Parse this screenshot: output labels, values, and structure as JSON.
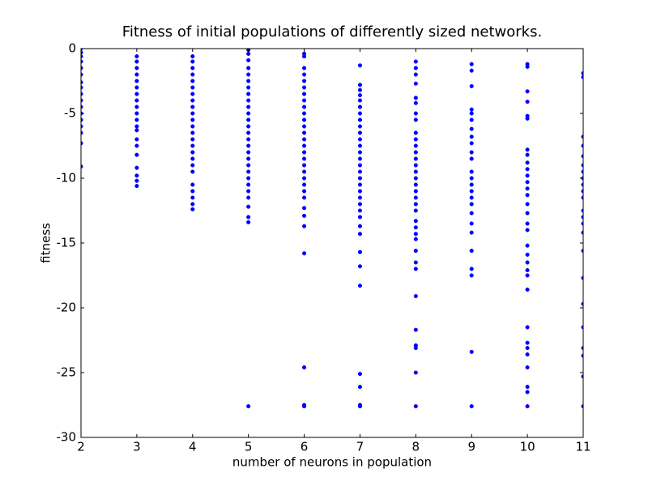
{
  "chart_data": {
    "type": "scatter",
    "title": "Fitness of initial populations of differently sized networks.",
    "x_label": "number of neurons in population",
    "y_label": "fitness",
    "color": "#0000ff",
    "xlim": [
      2,
      11
    ],
    "ylim": [
      -30,
      0
    ],
    "xticks": [
      2,
      3,
      4,
      5,
      6,
      7,
      8,
      9,
      10,
      11
    ],
    "yticks": [
      0,
      -5,
      -10,
      -15,
      -20,
      -25,
      -30
    ],
    "grid": false,
    "x": [
      2,
      2,
      2,
      2,
      2,
      2,
      2,
      2,
      2,
      2,
      2,
      2,
      2,
      2,
      2,
      2,
      2,
      3,
      3,
      3,
      3,
      3,
      3,
      3,
      3,
      3,
      3,
      3,
      3,
      3,
      3,
      3,
      3,
      3,
      3,
      3,
      3,
      4,
      4,
      4,
      4,
      4,
      4,
      4,
      4,
      4,
      4,
      4,
      4,
      4,
      4,
      4,
      4,
      4,
      4,
      4,
      4,
      4,
      4,
      4,
      4,
      5,
      5,
      5,
      5,
      5,
      5,
      5,
      5,
      5,
      5,
      5,
      5,
      5,
      5,
      5,
      5,
      5,
      5,
      5,
      5,
      5,
      5,
      5,
      5,
      5,
      5,
      5,
      5,
      6,
      6,
      6,
      6,
      6,
      6,
      6,
      6,
      6,
      6,
      6,
      6,
      6,
      6,
      6,
      6,
      6,
      6,
      6,
      6,
      6,
      6,
      6,
      6,
      6,
      6,
      6,
      6,
      6,
      6,
      7,
      7,
      7,
      7,
      7,
      7,
      7,
      7,
      7,
      7,
      7,
      7,
      7,
      7,
      7,
      7,
      7,
      7,
      7,
      7,
      7,
      7,
      7,
      7,
      7,
      7,
      7,
      7,
      7,
      7,
      7,
      7,
      8,
      8,
      8,
      8,
      8,
      8,
      8,
      8,
      8,
      8,
      8,
      8,
      8,
      8,
      8,
      8,
      8,
      8,
      8,
      8,
      8,
      8,
      8,
      8,
      8,
      8,
      8,
      8,
      8,
      8,
      8,
      8,
      8,
      8,
      9,
      9,
      9,
      9,
      9,
      9,
      9,
      9,
      9,
      9,
      9,
      9,
      9,
      9,
      9,
      9,
      9,
      9,
      9,
      9,
      9,
      9,
      9,
      9,
      9,
      10,
      10,
      10,
      10,
      10,
      10,
      10,
      10,
      10,
      10,
      10,
      10,
      10,
      10,
      10,
      10,
      10,
      10,
      10,
      10,
      10,
      10,
      10,
      10,
      10,
      10,
      10,
      10,
      10,
      10,
      10,
      10,
      11,
      11,
      11,
      11,
      11,
      11,
      11,
      11,
      11,
      11,
      11,
      11,
      11,
      11,
      11,
      11,
      11,
      11,
      11,
      11,
      11,
      11,
      11
    ],
    "values": [
      0,
      -0.3,
      -0.6,
      -1,
      -1.5,
      -2,
      -2.6,
      -3,
      -3.5,
      -4,
      -4.5,
      -5,
      -5.5,
      -6,
      -6.5,
      -7.3,
      -9.1,
      -0.6,
      -1,
      -1.5,
      -2,
      -2.5,
      -3,
      -3.5,
      -4,
      -4.5,
      -5,
      -5.5,
      -6,
      -6.3,
      -7,
      -7.5,
      -8.2,
      -9.2,
      -9.8,
      -10.2,
      -10.6,
      -0.6,
      -1,
      -1.5,
      -2,
      -2.5,
      -3,
      -3.5,
      -4,
      -4.5,
      -5,
      -5.5,
      -6,
      -6.5,
      -7,
      -7.5,
      -8,
      -8.5,
      -9,
      -9.5,
      -10.5,
      -11,
      -11.5,
      -12,
      -12.4,
      -0.1,
      -0.4,
      -0.9,
      -1.5,
      -2,
      -2.5,
      -3,
      -3.5,
      -4,
      -4.5,
      -5,
      -5.5,
      -6,
      -6.5,
      -7,
      -7.5,
      -8,
      -8.5,
      -9,
      -9.5,
      -10,
      -10.5,
      -11,
      -11.5,
      -12.2,
      -13,
      -13.4,
      -27.6,
      -0.4,
      -0.6,
      -1.5,
      -2,
      -2.5,
      -3,
      -3.5,
      -4,
      -4.5,
      -5,
      -5.5,
      -6,
      -6.5,
      -7,
      -7.5,
      -8,
      -8.5,
      -9,
      -9.5,
      -10,
      -10.5,
      -11,
      -11.5,
      -12.3,
      -12.9,
      -13.7,
      -15.8,
      -24.6,
      -27.5,
      -27.6,
      -1.3,
      -2.8,
      -3.2,
      -3.6,
      -4,
      -4.5,
      -5,
      -5.5,
      -6,
      -6.5,
      -7,
      -7.5,
      -8,
      -8.5,
      -9,
      -9.5,
      -10,
      -10.5,
      -11,
      -11.5,
      -12,
      -12.5,
      -13,
      -13.7,
      -14.3,
      -15.7,
      -16.8,
      -18.3,
      -25.1,
      -26.1,
      -27.5,
      -27.6,
      -1,
      -1.5,
      -2,
      -2.7,
      -3.8,
      -4.2,
      -5,
      -5.5,
      -6.5,
      -7,
      -7.5,
      -8,
      -8.5,
      -9,
      -9.5,
      -10,
      -10.5,
      -11,
      -11.5,
      -12,
      -12.5,
      -13.3,
      -13.8,
      -14.3,
      -14.7,
      -15.6,
      -16.5,
      -17,
      -19.1,
      -21.7,
      -22.9,
      -23.1,
      -25,
      -27.6,
      -1.2,
      -1.7,
      -2.9,
      -4.7,
      -5,
      -5.5,
      -6.2,
      -6.8,
      -7.3,
      -8,
      -8.5,
      -9.5,
      -10,
      -10.5,
      -11,
      -11.5,
      -12,
      -12.7,
      -13.5,
      -14.2,
      -15.6,
      -17,
      -17.5,
      -23.4,
      -27.6,
      -1.2,
      -1.4,
      -3.3,
      -4.1,
      -5.2,
      -5.4,
      -7.8,
      -8.2,
      -8.8,
      -9.3,
      -9.8,
      -10.3,
      -10.8,
      -11.3,
      -12,
      -12.7,
      -13.5,
      -14,
      -15.2,
      -15.9,
      -16.5,
      -17.1,
      -17.5,
      -18.6,
      -21.5,
      -22.7,
      -23.1,
      -23.6,
      -24.6,
      -26.1,
      -26.5,
      -27.6,
      -1.9,
      -2.2,
      -6.8,
      -7.5,
      -8.3,
      -9,
      -9.5,
      -10,
      -10.5,
      -11,
      -11.5,
      -12.5,
      -13,
      -13.5,
      -14.2,
      -15.6,
      -17.7,
      -19.7,
      -21.5,
      -23.1,
      -23.7,
      -25.3,
      -27.6
    ]
  }
}
